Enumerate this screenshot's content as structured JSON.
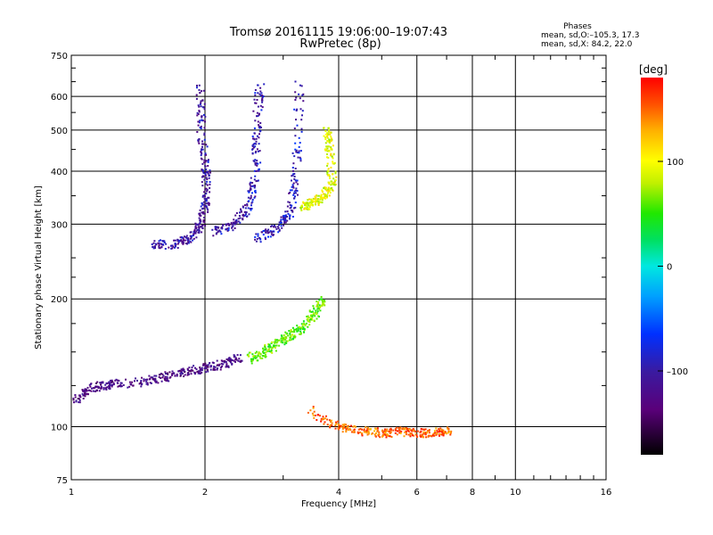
{
  "header": {
    "title_line1": "Tromsø 20161115 19:06:00–19:07:43",
    "title_line2": "RwPretec (8p)"
  },
  "stats": {
    "heading": "Phases",
    "line_o": "mean, sd,O:–105.3, 17.3",
    "line_x": "mean, sd,X:  84.2, 22.0"
  },
  "colorbar": {
    "unit_label": "[deg]",
    "ticks": [
      "100",
      "0",
      "–100"
    ],
    "tick_values": [
      100,
      0,
      -100
    ],
    "range": [
      -180,
      180
    ]
  },
  "chart_data": {
    "type": "scatter",
    "title": "Tromsø 20161115 19:06:00–19:07:43",
    "subtitle": "RwPretec (8p)",
    "xlabel": "Frequency [MHz]",
    "ylabel": "Stationary phase Virtual Height [km]",
    "x_scale": "log",
    "y_scale": "log",
    "xlim": [
      1,
      16
    ],
    "ylim": [
      75,
      750
    ],
    "x_ticks": [
      1,
      2,
      4,
      6,
      8,
      10,
      16
    ],
    "x_tick_labels": [
      "1",
      "2",
      "4",
      "6",
      "8",
      "10",
      "16"
    ],
    "y_ticks": [
      75,
      100,
      200,
      300,
      400,
      500,
      600,
      750
    ],
    "y_tick_labels": [
      "75",
      "100",
      "200",
      "300",
      "400",
      "500",
      "600",
      "750"
    ],
    "grid": true,
    "color_encodes": "phase [deg]",
    "traces": [
      {
        "points": [
          [
            1.0,
            115
          ],
          [
            1.1,
            124
          ],
          [
            1.2,
            126
          ],
          [
            1.4,
            128
          ],
          [
            1.6,
            131
          ],
          [
            1.8,
            135
          ],
          [
            2.0,
            138
          ],
          [
            2.2,
            141
          ],
          [
            2.4,
            146
          ]
        ],
        "phase": -125
      },
      {
        "points": [
          [
            2.5,
            145
          ],
          [
            2.7,
            150
          ],
          [
            2.9,
            158
          ],
          [
            3.1,
            165
          ],
          [
            3.3,
            172
          ],
          [
            3.5,
            185
          ],
          [
            3.65,
            200
          ]
        ],
        "phase": 60
      },
      {
        "points": [
          [
            1.5,
            270
          ],
          [
            1.7,
            270
          ],
          [
            1.85,
            280
          ],
          [
            1.95,
            300
          ],
          [
            2.0,
            340
          ],
          [
            2.0,
            400
          ],
          [
            1.95,
            500
          ],
          [
            1.95,
            640
          ]
        ],
        "phase": -110
      },
      {
        "points": [
          [
            2.1,
            290
          ],
          [
            2.3,
            300
          ],
          [
            2.5,
            330
          ],
          [
            2.6,
            400
          ],
          [
            2.6,
            500
          ],
          [
            2.65,
            650
          ]
        ],
        "phase": -105
      },
      {
        "points": [
          [
            2.6,
            280
          ],
          [
            2.9,
            295
          ],
          [
            3.1,
            320
          ],
          [
            3.2,
            400
          ],
          [
            3.25,
            650
          ]
        ],
        "phase": -100
      },
      {
        "points": [
          [
            3.3,
            330
          ],
          [
            3.5,
            340
          ],
          [
            3.7,
            350
          ],
          [
            3.85,
            380
          ],
          [
            3.8,
            450
          ],
          [
            3.75,
            500
          ]
        ],
        "phase": 95
      },
      {
        "points": [
          [
            3.4,
            110
          ],
          [
            4.0,
            100
          ],
          [
            4.5,
            98
          ],
          [
            5.0,
            97
          ],
          [
            5.5,
            98
          ],
          [
            6.0,
            97
          ],
          [
            6.6,
            97
          ],
          [
            7.0,
            98
          ]
        ],
        "phase": 150
      }
    ],
    "colorscale": "rainbow (black → purple → blue → cyan → green → yellow → orange → red)"
  }
}
